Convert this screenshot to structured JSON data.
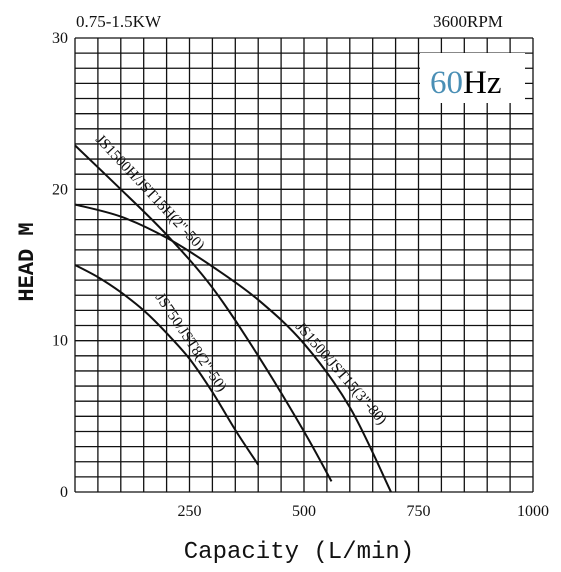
{
  "header": {
    "power_label": "0.75-1.5KW",
    "rpm_label": "3600RPM",
    "freq_number": "60",
    "freq_unit": "Hz"
  },
  "colors": {
    "freq_number": "#4a8fb5",
    "ink": "#111111"
  },
  "chart_data": {
    "type": "line",
    "title": "",
    "xlabel": "Capacity (L/min)",
    "ylabel": "HEAD M",
    "xlim": [
      0,
      1000
    ],
    "ylim": [
      0,
      30
    ],
    "x_ticks": [
      250,
      500,
      750,
      1000
    ],
    "y_ticks": [
      0,
      10,
      20,
      30
    ],
    "grid": true,
    "series": [
      {
        "name": "JS1500H/JST15H(2\"-50)",
        "x": [
          0,
          100,
          200,
          300,
          400,
          500,
          560
        ],
        "y": [
          22.9,
          20.0,
          17.0,
          13.5,
          9.0,
          4.0,
          0.7
        ]
      },
      {
        "name": "JS1500/JST15(3\"-80)",
        "x": [
          0,
          100,
          200,
          300,
          400,
          500,
          600,
          690
        ],
        "y": [
          19.0,
          18.2,
          16.8,
          14.9,
          12.7,
          9.8,
          5.6,
          0
        ]
      },
      {
        "name": "JS750/JST8(2\"-50)",
        "x": [
          0,
          50,
          100,
          150,
          200,
          250,
          300,
          350,
          400
        ],
        "y": [
          15.0,
          14.2,
          13.2,
          12.0,
          10.5,
          8.8,
          6.6,
          4.1,
          1.8
        ]
      }
    ]
  }
}
